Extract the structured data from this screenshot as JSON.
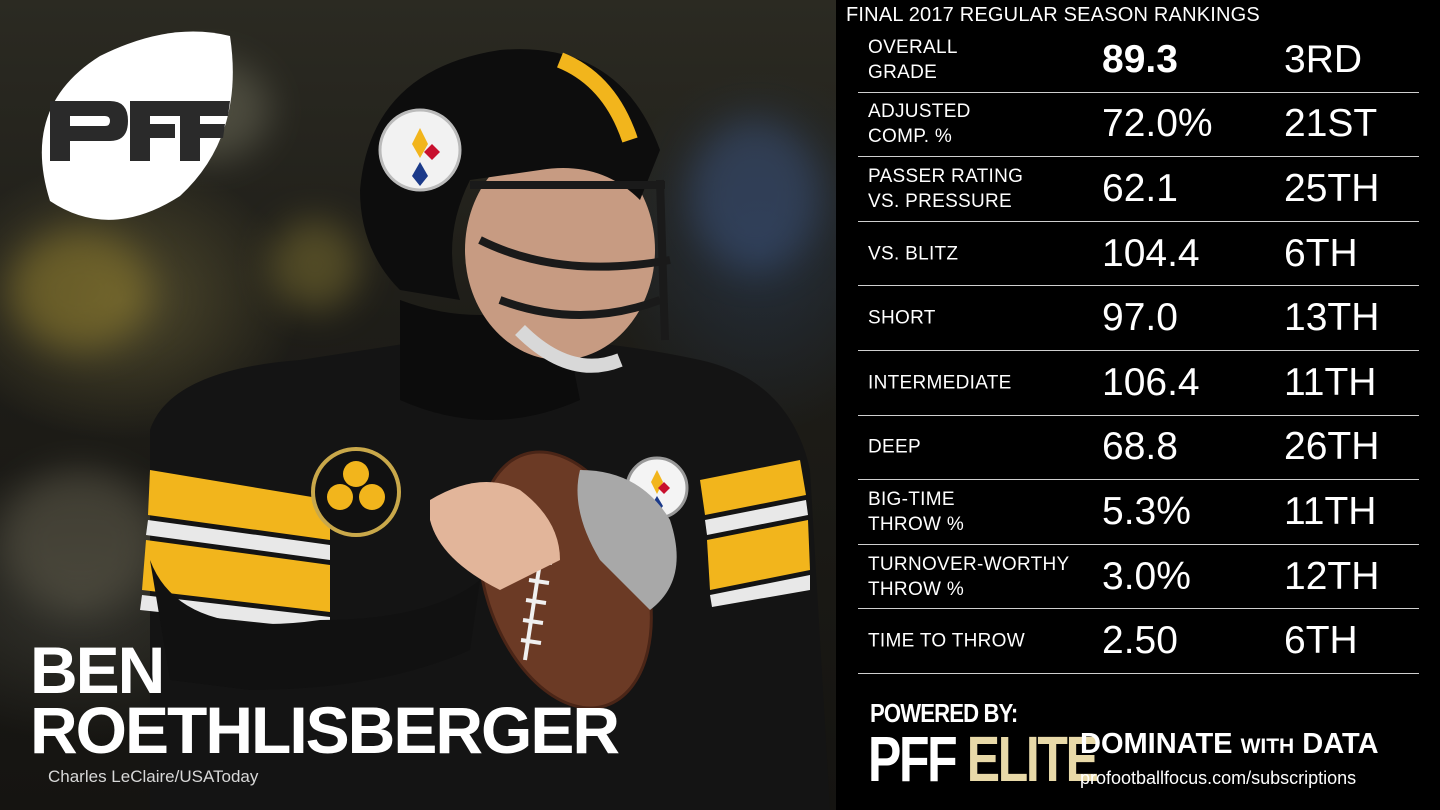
{
  "brand": {
    "logo_text": "PFF"
  },
  "player": {
    "first_name": "BEN",
    "last_name": "ROETHLISBERGER"
  },
  "photo_credit": "Charles LeClaire/USAToday",
  "panel_title": "FINAL 2017 REGULAR SEASON RANKINGS",
  "stats": [
    {
      "label_line1": "OVERALL",
      "label_line2": "GRADE",
      "value": "89.3",
      "rank": "3RD"
    },
    {
      "label_line1": "ADJUSTED",
      "label_line2": "COMP. %",
      "value": "72.0%",
      "rank": "21ST"
    },
    {
      "label_line1": "PASSER RATING",
      "label_line2": "VS. PRESSURE",
      "value": "62.1",
      "rank": "25TH"
    },
    {
      "label_line1": "VS. BLITZ",
      "label_line2": "",
      "value": "104.4",
      "rank": "6TH"
    },
    {
      "label_line1": "SHORT",
      "label_line2": "",
      "value": "97.0",
      "rank": "13TH"
    },
    {
      "label_line1": "INTERMEDIATE",
      "label_line2": "",
      "value": "106.4",
      "rank": "11TH"
    },
    {
      "label_line1": "DEEP",
      "label_line2": "",
      "value": "68.8",
      "rank": "26TH"
    },
    {
      "label_line1": "BIG-TIME",
      "label_line2": "THROW %",
      "value": "5.3%",
      "rank": "11TH"
    },
    {
      "label_line1": "TURNOVER-WORTHY",
      "label_line2": "THROW %",
      "value": "3.0%",
      "rank": "12TH"
    },
    {
      "label_line1": "TIME TO THROW",
      "label_line2": "",
      "value": "2.50",
      "rank": "6TH"
    }
  ],
  "footer": {
    "powered_by": "POWERED BY:",
    "pff": "PFF",
    "elite": "ELITE",
    "dominate": "DOMINATE",
    "with": "WITH",
    "data": "DATA",
    "url": "profootballfocus.com/subscriptions"
  },
  "colors": {
    "elite_gold": "#e8d9a8",
    "jersey_gold": "#f2b51c",
    "panel_bg": "#000000"
  }
}
